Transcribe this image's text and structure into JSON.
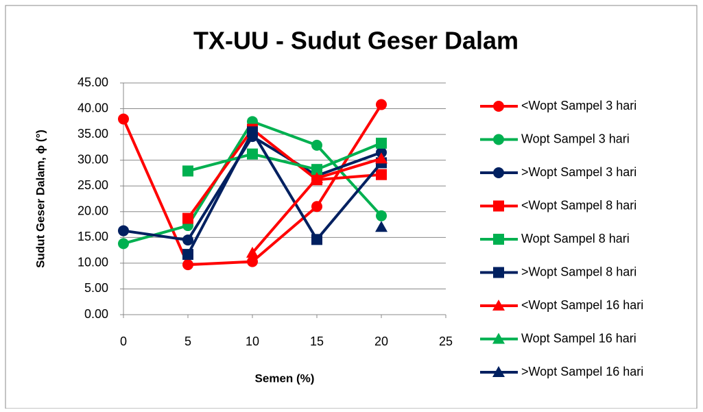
{
  "chart_data": {
    "type": "line",
    "title": "TX-UU - Sudut Geser Dalam",
    "x_label": "Semen (%)",
    "y_label": "Sudut Geser Dalam, ϕ (°)",
    "x": [
      0,
      5,
      10,
      15,
      20
    ],
    "xlim": [
      0,
      25
    ],
    "xticks": [
      0,
      5,
      10,
      15,
      20,
      25
    ],
    "ylim": [
      0,
      45
    ],
    "yticks": [
      {
        "value": 0,
        "label": "0.00"
      },
      {
        "value": 5,
        "label": "5.00"
      },
      {
        "value": 10,
        "label": "10.00"
      },
      {
        "value": 15,
        "label": "15.00"
      },
      {
        "value": 20,
        "label": "20.00"
      },
      {
        "value": 25,
        "label": "25.00"
      },
      {
        "value": 30,
        "label": "30.00"
      },
      {
        "value": 35,
        "label": "35.00"
      },
      {
        "value": 40,
        "label": "40.00"
      },
      {
        "value": 45,
        "label": "45.00"
      }
    ],
    "grid": true,
    "legend": "right",
    "series": [
      {
        "name": "<Wopt Sampel 3 hari",
        "color": "#ff0000",
        "marker": "circle",
        "values": [
          38.0,
          9.7,
          10.3,
          21.0,
          40.8
        ]
      },
      {
        "name": "Wopt Sampel 3 hari",
        "color": "#00b050",
        "marker": "circle",
        "values": [
          13.8,
          17.3,
          37.5,
          32.9,
          19.2
        ]
      },
      {
        "name": ">Wopt Sampel 3 hari",
        "color": "#002060",
        "marker": "circle",
        "values": [
          16.3,
          14.5,
          34.6,
          27.0,
          31.5
        ]
      },
      {
        "name": "<Wopt Sampel 8 hari",
        "color": "#ff0000",
        "marker": "square",
        "values": [
          null,
          18.7,
          36.0,
          26.2,
          27.2
        ]
      },
      {
        "name": "Wopt Sampel 8 hari",
        "color": "#00b050",
        "marker": "square",
        "values": [
          null,
          27.9,
          31.2,
          28.2,
          33.3
        ]
      },
      {
        "name": ">Wopt Sampel 8 hari",
        "color": "#002060",
        "marker": "square",
        "values": [
          null,
          11.7,
          35.5,
          14.6,
          29.5
        ]
      },
      {
        "name": "<Wopt Sampel 16 hari",
        "color": "#ff0000",
        "marker": "triangle",
        "values": [
          null,
          null,
          12.0,
          26.5,
          30.3
        ]
      },
      {
        "name": "Wopt Sampel 16 hari",
        "color": "#00b050",
        "marker": "triangle",
        "values": [
          null,
          null,
          null,
          null,
          null
        ]
      },
      {
        "name": ">Wopt Sampel 16 hari",
        "color": "#002060",
        "marker": "triangle",
        "values": [
          null,
          null,
          null,
          null,
          17.0
        ]
      }
    ]
  }
}
